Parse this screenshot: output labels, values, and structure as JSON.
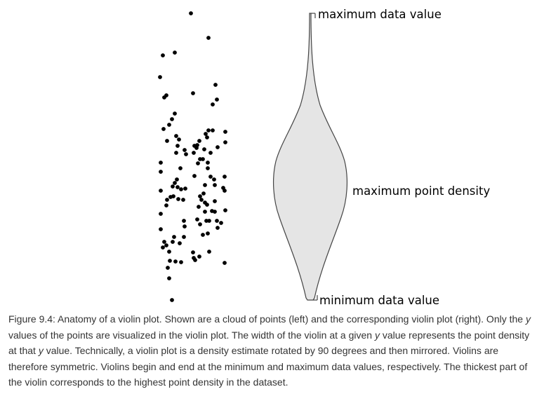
{
  "figure": {
    "annotations": {
      "max_value": "maximum data value",
      "max_density": "maximum point density",
      "min_value": "minimum data value"
    },
    "colors": {
      "points": "#000000",
      "violin_fill": "#e5e5e5",
      "violin_stroke": "#444444"
    }
  },
  "caption": {
    "p1": "Figure 9.4: Anatomy of a violin plot. Shown are a cloud of points (left) and the corresponding violin plot (right). Only the ",
    "y1": "y",
    "p2": " values of the points are visualized in the violin plot. The width of the violin at a given ",
    "y2": "y",
    "p3": " value represents the point density at that ",
    "y3": "y",
    "p4": " value. Technically, a violin plot is a density estimate rotated by 90 degrees and then mirrored. Violins are therefore symmetric. Violins begin and end at the minimum and maximum data values, respectively. The thickest part of the violin corresponds to the highest point density in the dataset."
  }
}
